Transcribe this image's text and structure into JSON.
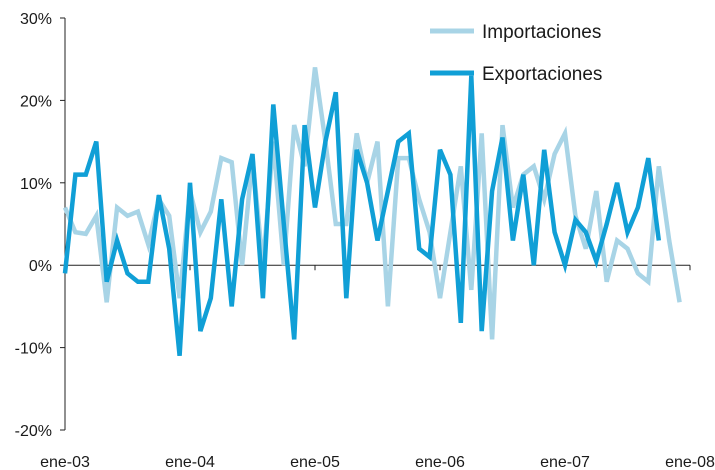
{
  "chart_data": {
    "type": "line",
    "title": "",
    "xlabel": "",
    "ylabel": "",
    "x_tick_labels": [
      "ene-03",
      "ene-04",
      "ene-05",
      "ene-06",
      "ene-07",
      "ene-08"
    ],
    "y_tick_labels": [
      "30%",
      "20%",
      "10%",
      "0%",
      "-10%",
      "-20%"
    ],
    "y_ticks": [
      30,
      20,
      10,
      0,
      -10,
      -20
    ],
    "ylim": [
      -20,
      30
    ],
    "x_unit": "month",
    "x_start": "ene-03",
    "legend_position": "top-right",
    "grid": false,
    "series": [
      {
        "name": "Importaciones",
        "color": "#a8d4e6",
        "values": [
          7,
          4,
          3.8,
          6,
          -4.5,
          7,
          6,
          6.5,
          2.5,
          8,
          6,
          -4,
          9,
          4,
          6.5,
          13,
          12.5,
          0,
          13,
          0,
          15,
          0,
          17,
          12,
          24,
          15,
          5,
          5,
          16,
          10,
          15,
          -5,
          13,
          13,
          8,
          4,
          -4,
          4,
          12,
          -3,
          16,
          -9,
          17,
          7,
          11,
          12,
          8,
          13.5,
          16,
          6,
          2,
          9,
          -2,
          3,
          2,
          -1,
          -2,
          12,
          3,
          -4.5
        ]
      },
      {
        "name": "Exportaciones",
        "color": "#109fd6",
        "values": [
          -1,
          11,
          11,
          15,
          -2,
          3,
          -1,
          -2,
          -2,
          8.5,
          2,
          -11,
          10,
          -8,
          -4,
          8,
          -5,
          8,
          13.5,
          -4,
          19.5,
          5,
          -9,
          17,
          7,
          15,
          21,
          -4,
          14,
          10,
          3,
          9,
          15,
          16,
          2,
          1,
          14,
          11,
          -7,
          23,
          -8,
          9,
          15.5,
          3,
          11,
          0,
          14,
          4,
          0,
          5.5,
          4,
          0.5,
          5,
          10,
          4,
          7,
          13,
          3
        ]
      }
    ]
  }
}
